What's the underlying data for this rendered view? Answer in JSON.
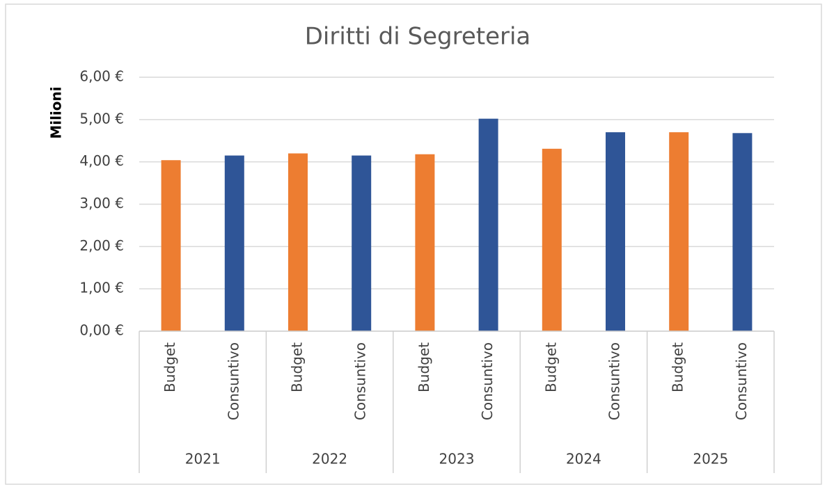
{
  "chart_data": {
    "type": "bar",
    "title": "Diritti di Segreteria",
    "y_label": "Milioni",
    "groups": [
      "2021",
      "2022",
      "2023",
      "2024",
      "2025"
    ],
    "categories": [
      "Budget",
      "Consuntivo",
      "Budget",
      "Consuntivo",
      "Budget",
      "Consuntivo",
      "Budget",
      "Consuntivo",
      "Budget",
      "Consuntivo"
    ],
    "values": [
      4.04,
      4.15,
      4.2,
      4.15,
      4.18,
      5.02,
      4.31,
      4.7,
      4.7,
      4.68
    ],
    "colors": [
      "#ed7d31",
      "#2f5597",
      "#ed7d31",
      "#2f5597",
      "#ed7d31",
      "#2f5597",
      "#ed7d31",
      "#2f5597",
      "#ed7d31",
      "#2f5597"
    ],
    "ylim": [
      0,
      6
    ],
    "yticks": [
      {
        "value": 0,
        "label": "0,00 €"
      },
      {
        "value": 1,
        "label": "1,00 €"
      },
      {
        "value": 2,
        "label": "2,00 €"
      },
      {
        "value": 3,
        "label": "3,00 €"
      },
      {
        "value": 4,
        "label": "4,00 €"
      },
      {
        "value": 5,
        "label": "5,00 €"
      },
      {
        "value": 6,
        "label": "6,00 €"
      }
    ],
    "grid": true
  }
}
